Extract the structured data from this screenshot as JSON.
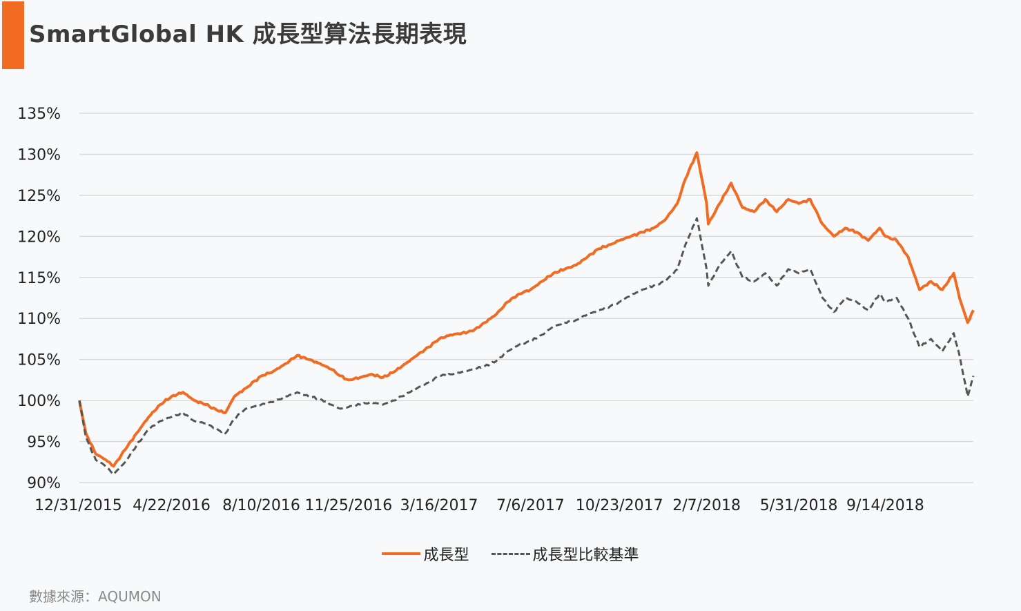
{
  "title": "SmartGlobal HK 成長型算法長期表現",
  "source": "數據來源：AQUMON",
  "colors": {
    "accent": "#f26b22",
    "growth": "#f26b22",
    "benchmark": "#555555",
    "grid": "#d9d9d9"
  },
  "chart_data": {
    "type": "line",
    "title": "SmartGlobal HK 成長型算法長期表現",
    "xlabel": "",
    "ylabel": "",
    "ylim": [
      90,
      135
    ],
    "yticks": [
      90,
      95,
      100,
      105,
      110,
      115,
      120,
      125,
      130,
      135
    ],
    "ytick_labels": [
      "90%",
      "95%",
      "100%",
      "105%",
      "110%",
      "115%",
      "120%",
      "125%",
      "130%",
      "135%"
    ],
    "xlim": [
      "2015-12-31",
      "2018-12-31"
    ],
    "xtick_labels": [
      "12/31/2015",
      "4/22/2016",
      "8/10/2016",
      "11/25/2016",
      "3/16/2017",
      "7/6/2017",
      "10/23/2017",
      "2/7/2018",
      "5/31/2018",
      "9/14/2018"
    ],
    "xtick_dates": [
      "2015-12-31",
      "2016-04-22",
      "2016-08-10",
      "2016-11-25",
      "2017-03-16",
      "2017-07-06",
      "2017-10-23",
      "2018-02-07",
      "2018-05-31",
      "2018-09-14"
    ],
    "grid": true,
    "legend_position": "bottom",
    "series": [
      {
        "name": "成長型",
        "style": "solid",
        "points": [
          [
            "2015-12-31",
            100
          ],
          [
            "2016-01-08",
            96
          ],
          [
            "2016-01-20",
            93.5
          ],
          [
            "2016-02-01",
            92.8
          ],
          [
            "2016-02-11",
            92
          ],
          [
            "2016-02-25",
            94
          ],
          [
            "2016-03-10",
            96
          ],
          [
            "2016-03-25",
            98
          ],
          [
            "2016-04-08",
            99.5
          ],
          [
            "2016-04-22",
            100.5
          ],
          [
            "2016-05-06",
            101
          ],
          [
            "2016-05-20",
            100
          ],
          [
            "2016-06-03",
            99.5
          ],
          [
            "2016-06-17",
            98.8
          ],
          [
            "2016-06-27",
            98.5
          ],
          [
            "2016-07-08",
            100.5
          ],
          [
            "2016-07-22",
            101.5
          ],
          [
            "2016-08-10",
            103
          ],
          [
            "2016-08-24",
            103.5
          ],
          [
            "2016-09-09",
            104.5
          ],
          [
            "2016-09-23",
            105.5
          ],
          [
            "2016-10-07",
            105
          ],
          [
            "2016-10-21",
            104.5
          ],
          [
            "2016-11-04",
            103.8
          ],
          [
            "2016-11-15",
            103
          ],
          [
            "2016-11-25",
            102.5
          ],
          [
            "2016-12-09",
            102.8
          ],
          [
            "2016-12-23",
            103.2
          ],
          [
            "2017-01-06",
            102.8
          ],
          [
            "2017-01-20",
            103.5
          ],
          [
            "2017-02-03",
            104.5
          ],
          [
            "2017-02-17",
            105.5
          ],
          [
            "2017-03-03",
            106.5
          ],
          [
            "2017-03-16",
            107.5
          ],
          [
            "2017-03-30",
            108
          ],
          [
            "2017-04-13",
            108.2
          ],
          [
            "2017-04-27",
            108.5
          ],
          [
            "2017-05-11",
            109.5
          ],
          [
            "2017-05-25",
            110.5
          ],
          [
            "2017-06-08",
            112
          ],
          [
            "2017-06-22",
            113
          ],
          [
            "2017-07-06",
            113.5
          ],
          [
            "2017-07-20",
            114.5
          ],
          [
            "2017-08-03",
            115.5
          ],
          [
            "2017-08-17",
            116
          ],
          [
            "2017-08-31",
            116.5
          ],
          [
            "2017-09-14",
            117.5
          ],
          [
            "2017-09-28",
            118.5
          ],
          [
            "2017-10-12",
            119
          ],
          [
            "2017-10-23",
            119.5
          ],
          [
            "2017-11-06",
            120
          ],
          [
            "2017-11-20",
            120.5
          ],
          [
            "2017-12-04",
            121
          ],
          [
            "2017-12-18",
            122
          ],
          [
            "2018-01-02",
            124
          ],
          [
            "2018-01-12",
            127
          ],
          [
            "2018-01-26",
            130.2
          ],
          [
            "2018-02-07",
            124
          ],
          [
            "2018-02-09",
            121.5
          ],
          [
            "2018-02-23",
            124
          ],
          [
            "2018-03-09",
            126.5
          ],
          [
            "2018-03-23",
            123.5
          ],
          [
            "2018-04-06",
            123
          ],
          [
            "2018-04-20",
            124.5
          ],
          [
            "2018-05-04",
            123
          ],
          [
            "2018-05-18",
            124.5
          ],
          [
            "2018-05-31",
            124
          ],
          [
            "2018-06-14",
            124.5
          ],
          [
            "2018-06-29",
            121.5
          ],
          [
            "2018-07-13",
            120
          ],
          [
            "2018-07-27",
            121
          ],
          [
            "2018-08-10",
            120.5
          ],
          [
            "2018-08-24",
            119.5
          ],
          [
            "2018-09-07",
            121
          ],
          [
            "2018-09-14",
            120
          ],
          [
            "2018-09-28",
            119.5
          ],
          [
            "2018-10-12",
            117.5
          ],
          [
            "2018-10-26",
            113.5
          ],
          [
            "2018-11-09",
            114.5
          ],
          [
            "2018-11-23",
            113.5
          ],
          [
            "2018-12-07",
            115.5
          ],
          [
            "2018-12-14",
            112.5
          ],
          [
            "2018-12-24",
            109.5
          ],
          [
            "2018-12-31",
            111
          ]
        ]
      },
      {
        "name": "成長型比較基準",
        "style": "dashed",
        "points": [
          [
            "2015-12-31",
            100
          ],
          [
            "2016-01-08",
            95.5
          ],
          [
            "2016-01-20",
            92.8
          ],
          [
            "2016-02-01",
            92
          ],
          [
            "2016-02-11",
            91
          ],
          [
            "2016-02-25",
            92.5
          ],
          [
            "2016-03-10",
            94.5
          ],
          [
            "2016-03-25",
            96.5
          ],
          [
            "2016-04-08",
            97.5
          ],
          [
            "2016-04-22",
            98
          ],
          [
            "2016-05-06",
            98.5
          ],
          [
            "2016-05-20",
            97.5
          ],
          [
            "2016-06-03",
            97.2
          ],
          [
            "2016-06-17",
            96.5
          ],
          [
            "2016-06-27",
            96
          ],
          [
            "2016-07-08",
            97.8
          ],
          [
            "2016-07-22",
            99
          ],
          [
            "2016-08-10",
            99.5
          ],
          [
            "2016-08-24",
            99.8
          ],
          [
            "2016-09-09",
            100.5
          ],
          [
            "2016-09-23",
            101
          ],
          [
            "2016-10-07",
            100.5
          ],
          [
            "2016-10-21",
            100.2
          ],
          [
            "2016-11-04",
            99.5
          ],
          [
            "2016-11-15",
            99
          ],
          [
            "2016-11-25",
            99.2
          ],
          [
            "2016-12-09",
            99.5
          ],
          [
            "2016-12-23",
            99.8
          ],
          [
            "2017-01-06",
            99.5
          ],
          [
            "2017-01-20",
            100
          ],
          [
            "2017-02-03",
            100.8
          ],
          [
            "2017-02-17",
            101.5
          ],
          [
            "2017-03-03",
            102.2
          ],
          [
            "2017-03-16",
            103
          ],
          [
            "2017-03-30",
            103.2
          ],
          [
            "2017-04-13",
            103.5
          ],
          [
            "2017-04-27",
            103.8
          ],
          [
            "2017-05-11",
            104.2
          ],
          [
            "2017-05-25",
            104.8
          ],
          [
            "2017-06-08",
            106
          ],
          [
            "2017-06-22",
            106.8
          ],
          [
            "2017-07-06",
            107.2
          ],
          [
            "2017-07-20",
            108
          ],
          [
            "2017-08-03",
            109
          ],
          [
            "2017-08-17",
            109.5
          ],
          [
            "2017-08-31",
            109.8
          ],
          [
            "2017-09-14",
            110.5
          ],
          [
            "2017-09-28",
            111
          ],
          [
            "2017-10-12",
            111.5
          ],
          [
            "2017-10-23",
            112
          ],
          [
            "2017-11-06",
            112.8
          ],
          [
            "2017-11-20",
            113.5
          ],
          [
            "2017-12-04",
            114
          ],
          [
            "2017-12-18",
            114.5
          ],
          [
            "2018-01-02",
            116
          ],
          [
            "2018-01-12",
            119
          ],
          [
            "2018-01-26",
            122.2
          ],
          [
            "2018-02-07",
            116
          ],
          [
            "2018-02-09",
            114
          ],
          [
            "2018-02-23",
            116.5
          ],
          [
            "2018-03-09",
            118.2
          ],
          [
            "2018-03-23",
            115
          ],
          [
            "2018-04-06",
            114.5
          ],
          [
            "2018-04-20",
            115.5
          ],
          [
            "2018-05-04",
            114
          ],
          [
            "2018-05-18",
            116
          ],
          [
            "2018-05-31",
            115.5
          ],
          [
            "2018-06-14",
            116
          ],
          [
            "2018-06-29",
            112.5
          ],
          [
            "2018-07-13",
            110.8
          ],
          [
            "2018-07-27",
            112.5
          ],
          [
            "2018-08-10",
            112
          ],
          [
            "2018-08-24",
            111
          ],
          [
            "2018-09-07",
            113
          ],
          [
            "2018-09-14",
            112
          ],
          [
            "2018-09-28",
            112.5
          ],
          [
            "2018-10-12",
            110
          ],
          [
            "2018-10-26",
            106.5
          ],
          [
            "2018-11-09",
            107.5
          ],
          [
            "2018-11-23",
            106
          ],
          [
            "2018-12-07",
            108.2
          ],
          [
            "2018-12-14",
            105.5
          ],
          [
            "2018-12-24",
            100.5
          ],
          [
            "2018-12-31",
            103
          ]
        ]
      }
    ]
  }
}
